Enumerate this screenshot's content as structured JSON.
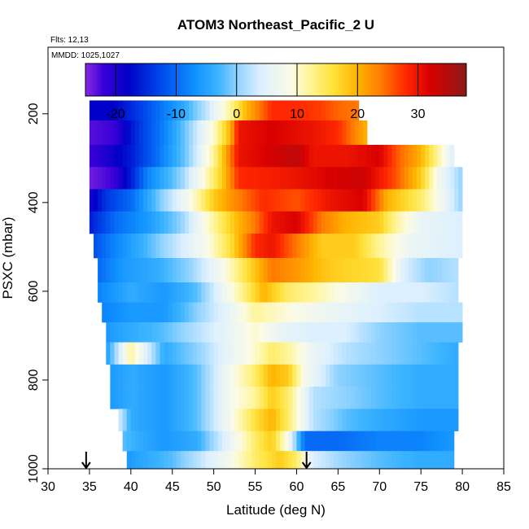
{
  "chart_data": {
    "type": "heatmap",
    "title": "ATOM3 Northeast_Pacific_2 U",
    "annotations": [
      "Flts: 12,13",
      "MMDD: 1025,1027"
    ],
    "xlabel": "Latitude (deg N)",
    "ylabel": "PSXC (mbar)",
    "xlim": [
      30,
      85
    ],
    "ylim": [
      1000,
      50
    ],
    "y_reversed": true,
    "xticks": [
      30,
      35,
      40,
      45,
      50,
      55,
      60,
      65,
      70,
      75,
      80,
      85
    ],
    "yticks": [
      200,
      400,
      600,
      800,
      1000
    ],
    "colorbar": {
      "range": [
        -25,
        38
      ],
      "ticks": [
        -20,
        -10,
        0,
        10,
        20,
        30
      ],
      "stops": [
        {
          "value": -25,
          "color": "#8a2be2"
        },
        {
          "value": -22,
          "color": "#3a00d8"
        },
        {
          "value": -18,
          "color": "#0000c8"
        },
        {
          "value": -12,
          "color": "#0050ee"
        },
        {
          "value": -7,
          "color": "#0f90ff"
        },
        {
          "value": -3,
          "color": "#3cb4ff"
        },
        {
          "value": 0,
          "color": "#8fd2ff"
        },
        {
          "value": 4,
          "color": "#ddf0ff"
        },
        {
          "value": 9,
          "color": "#fbfbe6"
        },
        {
          "value": 12,
          "color": "#fff59a"
        },
        {
          "value": 16,
          "color": "#ffe23a"
        },
        {
          "value": 20,
          "color": "#ffb400"
        },
        {
          "value": 24,
          "color": "#ff7a00"
        },
        {
          "value": 28,
          "color": "#ff2800"
        },
        {
          "value": 32,
          "color": "#d80000"
        },
        {
          "value": 38,
          "color": "#8b1a1a"
        }
      ]
    },
    "markers": [
      {
        "type": "arrow-down",
        "lat": 34.6,
        "pressure": 1000
      },
      {
        "type": "arrow-down",
        "lat": 61.2,
        "pressure": 1000
      }
    ],
    "layers": [
      {
        "p": [
          170,
          215
        ],
        "lat": [
          35,
          67.5
        ],
        "knots": [
          [
            35,
            -18
          ],
          [
            38,
            -18
          ],
          [
            42,
            -12
          ],
          [
            46,
            -5
          ],
          [
            49,
            2
          ],
          [
            52,
            12
          ],
          [
            54,
            20
          ],
          [
            57,
            28
          ],
          [
            60,
            28
          ],
          [
            63,
            27
          ],
          [
            65,
            25
          ],
          [
            67.5,
            24
          ]
        ]
      },
      {
        "p": [
          215,
          270
        ],
        "lat": [
          35,
          68.5
        ],
        "knots": [
          [
            35,
            -23
          ],
          [
            38,
            -22
          ],
          [
            41,
            -14
          ],
          [
            44,
            -8
          ],
          [
            47,
            0
          ],
          [
            50,
            10
          ],
          [
            52,
            20
          ],
          [
            53,
            30
          ],
          [
            57,
            32
          ],
          [
            62,
            30
          ],
          [
            65,
            28
          ],
          [
            68.5,
            20
          ]
        ]
      },
      {
        "p": [
          270,
          320
        ],
        "lat": [
          35,
          79
        ],
        "knots": [
          [
            35,
            -22
          ],
          [
            37,
            -20
          ],
          [
            40,
            -16
          ],
          [
            43,
            -10
          ],
          [
            47,
            0
          ],
          [
            50,
            12
          ],
          [
            53,
            30
          ],
          [
            60,
            34
          ],
          [
            62,
            30
          ],
          [
            66,
            30
          ],
          [
            70,
            32
          ],
          [
            72,
            26
          ],
          [
            75,
            20
          ],
          [
            77,
            12
          ],
          [
            79,
            4
          ]
        ]
      },
      {
        "p": [
          320,
          370
        ],
        "lat": [
          35,
          80
        ],
        "knots": [
          [
            35,
            -24
          ],
          [
            38,
            -22
          ],
          [
            40,
            -16
          ],
          [
            42,
            -8
          ],
          [
            46,
            0
          ],
          [
            49,
            10
          ],
          [
            51,
            18
          ],
          [
            53,
            28
          ],
          [
            60,
            30
          ],
          [
            64,
            32
          ],
          [
            68,
            33
          ],
          [
            72,
            26
          ],
          [
            75,
            18
          ],
          [
            77,
            8
          ],
          [
            80,
            0
          ]
        ]
      },
      {
        "p": [
          370,
          420
        ],
        "lat": [
          35,
          80
        ],
        "knots": [
          [
            35,
            -20
          ],
          [
            37,
            -14
          ],
          [
            40,
            -10
          ],
          [
            43,
            -2
          ],
          [
            47,
            8
          ],
          [
            50,
            18
          ],
          [
            52,
            22
          ],
          [
            56,
            28
          ],
          [
            60,
            26
          ],
          [
            64,
            30
          ],
          [
            68,
            32
          ],
          [
            71,
            20
          ],
          [
            75,
            14
          ],
          [
            78,
            6
          ],
          [
            80,
            0
          ]
        ]
      },
      {
        "p": [
          420,
          470
        ],
        "lat": [
          35,
          80
        ],
        "knots": [
          [
            35,
            -16
          ],
          [
            38,
            -10
          ],
          [
            42,
            -6
          ],
          [
            46,
            0
          ],
          [
            50,
            12
          ],
          [
            53,
            20
          ],
          [
            55,
            24
          ],
          [
            57,
            30
          ],
          [
            60,
            32
          ],
          [
            63,
            24
          ],
          [
            66,
            20
          ],
          [
            70,
            18
          ],
          [
            72,
            12
          ],
          [
            75,
            6
          ],
          [
            80,
            4
          ]
        ]
      },
      {
        "p": [
          470,
          525
        ],
        "lat": [
          35.5,
          80
        ],
        "knots": [
          [
            35.5,
            -12
          ],
          [
            38,
            -8
          ],
          [
            41,
            -4
          ],
          [
            45,
            2
          ],
          [
            49,
            8
          ],
          [
            52,
            16
          ],
          [
            55,
            28
          ],
          [
            57,
            30
          ],
          [
            60,
            24
          ],
          [
            63,
            18
          ],
          [
            67,
            18
          ],
          [
            70,
            12
          ],
          [
            74,
            6
          ],
          [
            80,
            4
          ]
        ]
      },
      {
        "p": [
          525,
          580
        ],
        "lat": [
          36,
          79.5
        ],
        "knots": [
          [
            36,
            -10
          ],
          [
            39,
            -6
          ],
          [
            43,
            -4
          ],
          [
            47,
            0
          ],
          [
            51,
            8
          ],
          [
            54,
            16
          ],
          [
            57,
            24
          ],
          [
            60,
            22
          ],
          [
            64,
            18
          ],
          [
            70,
            16
          ],
          [
            73,
            4
          ],
          [
            76,
            0
          ],
          [
            79.5,
            2
          ]
        ]
      },
      {
        "p": [
          580,
          625
        ],
        "lat": [
          36,
          79.5
        ],
        "knots": [
          [
            36,
            -8
          ],
          [
            40,
            -4
          ],
          [
            44,
            -6
          ],
          [
            48,
            -2
          ],
          [
            51,
            6
          ],
          [
            54,
            14
          ],
          [
            56,
            20
          ],
          [
            59,
            14
          ],
          [
            62,
            12
          ],
          [
            66,
            8
          ],
          [
            70,
            4
          ],
          [
            75,
            4
          ],
          [
            79.5,
            2
          ]
        ]
      },
      {
        "p": [
          625,
          670
        ],
        "lat": [
          36.5,
          80
        ],
        "knots": [
          [
            36.5,
            -8
          ],
          [
            40,
            -6
          ],
          [
            44,
            -6
          ],
          [
            48,
            0
          ],
          [
            52,
            6
          ],
          [
            55,
            12
          ],
          [
            58,
            10
          ],
          [
            61,
            8
          ],
          [
            65,
            6
          ],
          [
            70,
            4
          ],
          [
            75,
            2
          ],
          [
            80,
            2
          ]
        ]
      },
      {
        "p": [
          670,
          715
        ],
        "lat": [
          37,
          80
        ],
        "knots": [
          [
            37,
            -6
          ],
          [
            40,
            -4
          ],
          [
            44,
            -2
          ],
          [
            48,
            2
          ],
          [
            52,
            6
          ],
          [
            55,
            10
          ],
          [
            58,
            6
          ],
          [
            62,
            4
          ],
          [
            66,
            4
          ],
          [
            70,
            0
          ],
          [
            75,
            -2
          ],
          [
            80,
            -2
          ]
        ]
      },
      {
        "p": [
          715,
          765
        ],
        "lat": [
          37,
          79.5
        ],
        "knots": [
          [
            37,
            -6
          ],
          [
            40,
            12
          ],
          [
            42,
            4
          ],
          [
            44,
            -4
          ],
          [
            48,
            0
          ],
          [
            52,
            6
          ],
          [
            55,
            10
          ],
          [
            57,
            14
          ],
          [
            59,
            12
          ],
          [
            62,
            6
          ],
          [
            66,
            2
          ],
          [
            70,
            0
          ],
          [
            75,
            -2
          ],
          [
            79.5,
            -4
          ]
        ]
      },
      {
        "p": [
          765,
          815
        ],
        "lat": [
          37.5,
          79.5
        ],
        "knots": [
          [
            37.5,
            -6
          ],
          [
            40,
            -4
          ],
          [
            44,
            -6
          ],
          [
            48,
            -2
          ],
          [
            52,
            8
          ],
          [
            55,
            14
          ],
          [
            57,
            20
          ],
          [
            59,
            18
          ],
          [
            61,
            8
          ],
          [
            65,
            0
          ],
          [
            70,
            -2
          ],
          [
            75,
            -4
          ],
          [
            79.5,
            -4
          ]
        ]
      },
      {
        "p": [
          815,
          865
        ],
        "lat": [
          37.5,
          79.5
        ],
        "knots": [
          [
            37.5,
            -6
          ],
          [
            40,
            -4
          ],
          [
            44,
            -6
          ],
          [
            48,
            -2
          ],
          [
            52,
            8
          ],
          [
            55,
            12
          ],
          [
            57,
            18
          ],
          [
            59,
            14
          ],
          [
            62,
            2
          ],
          [
            66,
            0
          ],
          [
            70,
            -2
          ],
          [
            75,
            -4
          ],
          [
            79.5,
            -4
          ]
        ]
      },
      {
        "p": [
          865,
          915
        ],
        "lat": [
          38.5,
          79.5
        ],
        "knots": [
          [
            38.5,
            4
          ],
          [
            40,
            -4
          ],
          [
            44,
            -6
          ],
          [
            48,
            -2
          ],
          [
            52,
            8
          ],
          [
            55,
            16
          ],
          [
            57,
            20
          ],
          [
            59,
            14
          ],
          [
            62,
            2
          ],
          [
            66,
            -2
          ],
          [
            70,
            -4
          ],
          [
            75,
            -6
          ],
          [
            79.5,
            -6
          ]
        ]
      },
      {
        "p": [
          915,
          960
        ],
        "lat": [
          39,
          79
        ],
        "knots": [
          [
            39,
            -2
          ],
          [
            41,
            -4
          ],
          [
            44,
            -6
          ],
          [
            48,
            -4
          ],
          [
            52,
            6
          ],
          [
            55,
            14
          ],
          [
            57,
            18
          ],
          [
            59,
            8
          ],
          [
            61,
            -10
          ],
          [
            65,
            -10
          ],
          [
            70,
            -8
          ],
          [
            75,
            -8
          ],
          [
            79,
            -6
          ]
        ]
      },
      {
        "p": [
          960,
          1000
        ],
        "lat": [
          39.5,
          79
        ],
        "knots": [
          [
            39.5,
            -6
          ],
          [
            42,
            -4
          ],
          [
            45,
            -2
          ],
          [
            48,
            2
          ],
          [
            52,
            8
          ],
          [
            55,
            14
          ],
          [
            58,
            18
          ],
          [
            60,
            14
          ],
          [
            62,
            4
          ],
          [
            66,
            0
          ],
          [
            70,
            -2
          ],
          [
            75,
            -4
          ],
          [
            79,
            -4
          ]
        ]
      }
    ]
  }
}
